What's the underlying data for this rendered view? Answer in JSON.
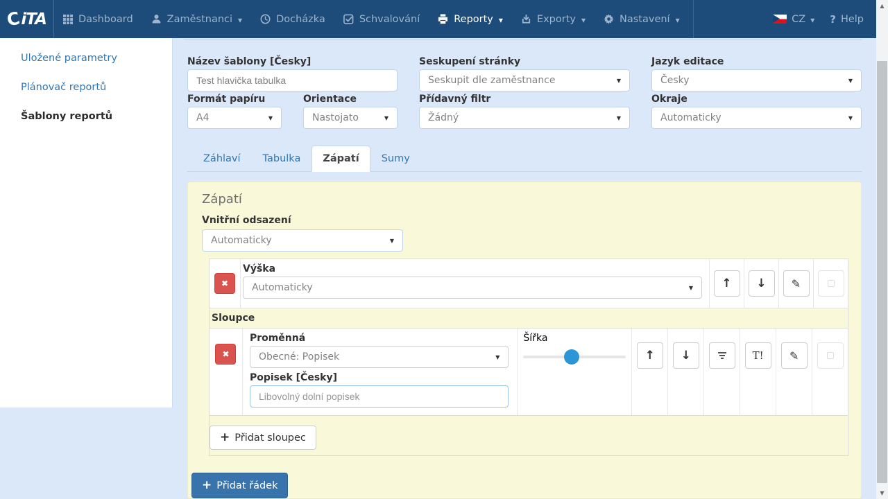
{
  "navbar": {
    "brand_mark": "C",
    "brand": "iTA",
    "items": [
      {
        "label": "Dashboard"
      },
      {
        "label": "Zaměstnanci"
      },
      {
        "label": "Docházka"
      },
      {
        "label": "Schvalování"
      },
      {
        "label": "Reporty"
      },
      {
        "label": "Exporty"
      },
      {
        "label": "Nastavení"
      }
    ],
    "language": "CZ",
    "help_icon": "?",
    "help": "Help"
  },
  "sidebar": {
    "items": [
      {
        "label": "Uložené parametry"
      },
      {
        "label": "Plánovač reportů"
      },
      {
        "label": "Šablony reportů"
      }
    ]
  },
  "form": {
    "template_name_label": "Název šablony [Česky]",
    "template_name_value": "Test hlavička tabulka",
    "page_grouping_label": "Seskupení stránky",
    "page_grouping_value": "Seskupit dle zaměstnance",
    "edit_language_label": "Jazyk editace",
    "edit_language_value": "Česky",
    "paper_format_label": "Formát papíru",
    "paper_format_value": "A4",
    "orientation_label": "Orientace",
    "orientation_value": "Nastojato",
    "extra_filter_label": "Přídavný filtr",
    "extra_filter_value": "Žádný",
    "margins_label": "Okraje",
    "margins_value": "Automaticky",
    "tabs": [
      {
        "label": "Záhlaví"
      },
      {
        "label": "Tabulka"
      },
      {
        "label": "Zápatí"
      },
      {
        "label": "Sumy"
      }
    ]
  },
  "footer_panel": {
    "title": "Zápatí",
    "inner_padding_label": "Vnitřní odsazení",
    "inner_padding_value": "Automaticky",
    "height_row": {
      "label": "Výška",
      "value": "Automaticky"
    },
    "columns_label": "Sloupce",
    "column": {
      "variable_label": "Proměnná",
      "variable_value": "Obecné: Popisek",
      "caption_label": "Popisek [Česky]",
      "caption_placeholder": "Libovolný dolní popisek",
      "width_label": "Šířka",
      "width_percent": 47
    },
    "add_column_label": "Přidat sloupec",
    "add_row_label": "Přidat řádek"
  },
  "colors": {
    "navbar_bg": "#1d4c7a",
    "content_bg": "#dbe8f9",
    "panel_bg": "#f9f9d9",
    "link_blue": "#3276b1",
    "danger_red": "#d9534f",
    "primary_blue": "#3973ac",
    "slider_blue": "#2b95d6"
  }
}
